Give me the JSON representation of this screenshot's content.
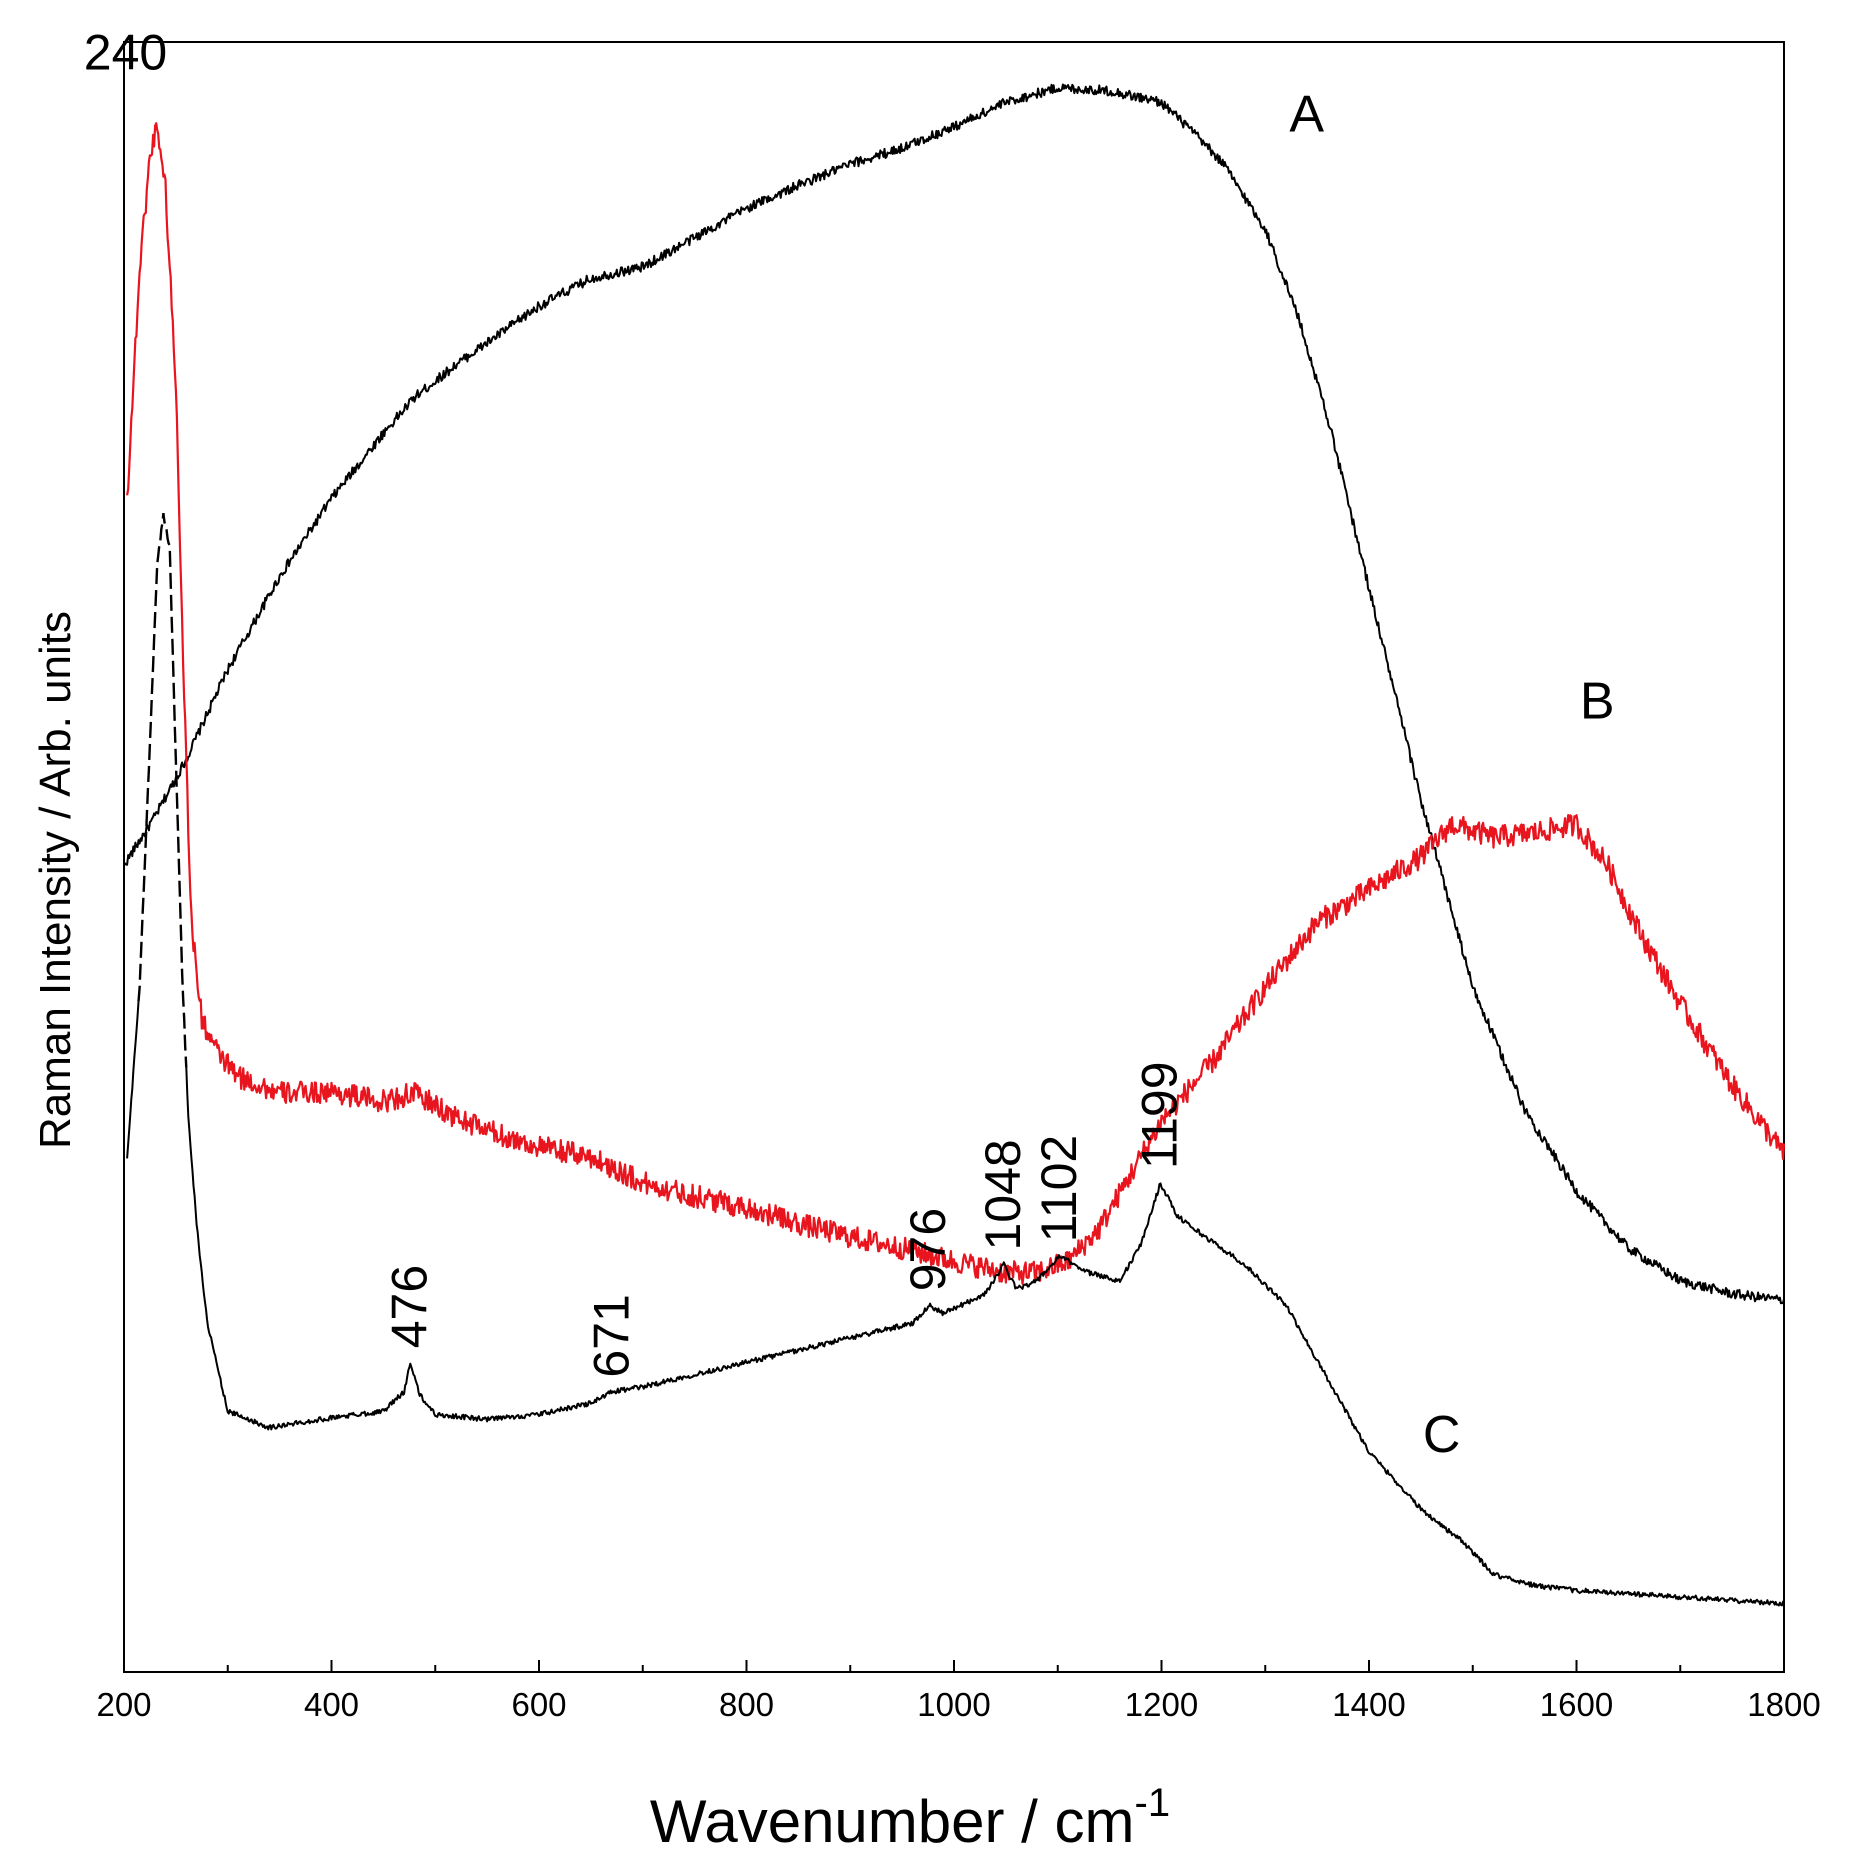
{
  "chart_data": {
    "type": "line",
    "title": "",
    "xlabel": "Wavenumber / cm",
    "xlabel_superscript": "-1",
    "ylabel": "Raman Intensity / Arb. units",
    "xlim": [
      200,
      1800
    ],
    "ylim": [
      0,
      1
    ],
    "y_ticks_shown": false,
    "grid": false,
    "x_major_ticks": [
      200,
      400,
      600,
      800,
      1000,
      1200,
      1400,
      1600,
      1800
    ],
    "x_minor_ticks": [
      300,
      500,
      700,
      900,
      1100,
      1300,
      1500,
      1700
    ],
    "series": [
      {
        "name": "A",
        "label": "A",
        "color": "#000000",
        "x": [
          200,
          230,
          260,
          300,
          350,
          400,
          450,
          480,
          520,
          560,
          600,
          650,
          700,
          750,
          800,
          850,
          900,
          950,
          1000,
          1050,
          1100,
          1150,
          1200,
          1230,
          1260,
          1300,
          1330,
          1360,
          1400,
          1450,
          1500,
          1550,
          1600,
          1650,
          1700,
          1750,
          1800
        ],
        "y": [
          0.495,
          0.525,
          0.56,
          0.615,
          0.672,
          0.72,
          0.76,
          0.782,
          0.802,
          0.82,
          0.838,
          0.855,
          0.862,
          0.88,
          0.898,
          0.912,
          0.925,
          0.935,
          0.948,
          0.963,
          0.972,
          0.97,
          0.963,
          0.945,
          0.925,
          0.885,
          0.835,
          0.77,
          0.665,
          0.535,
          0.42,
          0.345,
          0.295,
          0.26,
          0.24,
          0.232,
          0.228
        ]
      },
      {
        "name": "B",
        "label": "B",
        "color": "#e8141e",
        "x": [
          203,
          215,
          225,
          232,
          240,
          250,
          258,
          265,
          275,
          290,
          310,
          350,
          400,
          450,
          480,
          520,
          560,
          600,
          650,
          700,
          750,
          800,
          850,
          900,
          950,
          1000,
          1050,
          1080,
          1110,
          1140,
          1170,
          1200,
          1250,
          1300,
          1350,
          1400,
          1450,
          1480,
          1520,
          1560,
          1600,
          1630,
          1660,
          1700,
          1750,
          1800
        ],
        "y": [
          0.72,
          0.86,
          0.93,
          0.95,
          0.91,
          0.79,
          0.6,
          0.46,
          0.4,
          0.38,
          0.365,
          0.355,
          0.356,
          0.35,
          0.355,
          0.34,
          0.33,
          0.322,
          0.316,
          0.3,
          0.292,
          0.285,
          0.275,
          0.267,
          0.26,
          0.252,
          0.245,
          0.245,
          0.252,
          0.272,
          0.305,
          0.338,
          0.375,
          0.42,
          0.46,
          0.48,
          0.5,
          0.52,
          0.512,
          0.515,
          0.52,
          0.495,
          0.455,
          0.41,
          0.36,
          0.318
        ]
      },
      {
        "name": "C",
        "label": "C",
        "color": "#000000",
        "dashed_segment": [
          215,
          260
        ],
        "x": [
          203,
          215,
          225,
          232,
          238,
          244,
          250,
          256,
          262,
          270,
          280,
          300,
          340,
          400,
          450,
          470,
          476,
          485,
          500,
          550,
          600,
          650,
          671,
          700,
          800,
          900,
          960,
          976,
          990,
          1030,
          1048,
          1060,
          1080,
          1102,
          1130,
          1160,
          1180,
          1199,
          1215,
          1240,
          1280,
          1320,
          1360,
          1400,
          1450,
          1490,
          1520,
          1560,
          1600,
          1650,
          1700,
          1750,
          1800
        ],
        "y": [
          0.315,
          0.42,
          0.57,
          0.68,
          0.71,
          0.69,
          0.56,
          0.43,
          0.34,
          0.275,
          0.215,
          0.16,
          0.15,
          0.156,
          0.16,
          0.172,
          0.19,
          0.17,
          0.158,
          0.155,
          0.158,
          0.165,
          0.172,
          0.175,
          0.19,
          0.205,
          0.214,
          0.225,
          0.22,
          0.232,
          0.25,
          0.235,
          0.24,
          0.255,
          0.245,
          0.24,
          0.262,
          0.3,
          0.28,
          0.268,
          0.25,
          0.225,
          0.18,
          0.135,
          0.1,
          0.08,
          0.06,
          0.053,
          0.05,
          0.048,
          0.046,
          0.044,
          0.042
        ]
      }
    ],
    "annotations": [
      {
        "text": "240",
        "x": 240,
        "y": 0.95,
        "orientation": "horizontal"
      },
      {
        "text": "476",
        "x": 476,
        "y": 0.19,
        "orientation": "vertical"
      },
      {
        "text": "671",
        "x": 671,
        "y": 0.172,
        "orientation": "vertical"
      },
      {
        "text": "976",
        "x": 976,
        "y": 0.225,
        "orientation": "vertical"
      },
      {
        "text": "1048",
        "x": 1048,
        "y": 0.25,
        "orientation": "vertical"
      },
      {
        "text": "1102",
        "x": 1102,
        "y": 0.255,
        "orientation": "vertical"
      },
      {
        "text": "1199",
        "x": 1199,
        "y": 0.3,
        "orientation": "vertical"
      }
    ],
    "series_labels": [
      {
        "text": "A",
        "x": 1340,
        "y": 0.945
      },
      {
        "text": "B",
        "x": 1620,
        "y": 0.585
      },
      {
        "text": "C",
        "x": 1470,
        "y": 0.135
      }
    ]
  }
}
